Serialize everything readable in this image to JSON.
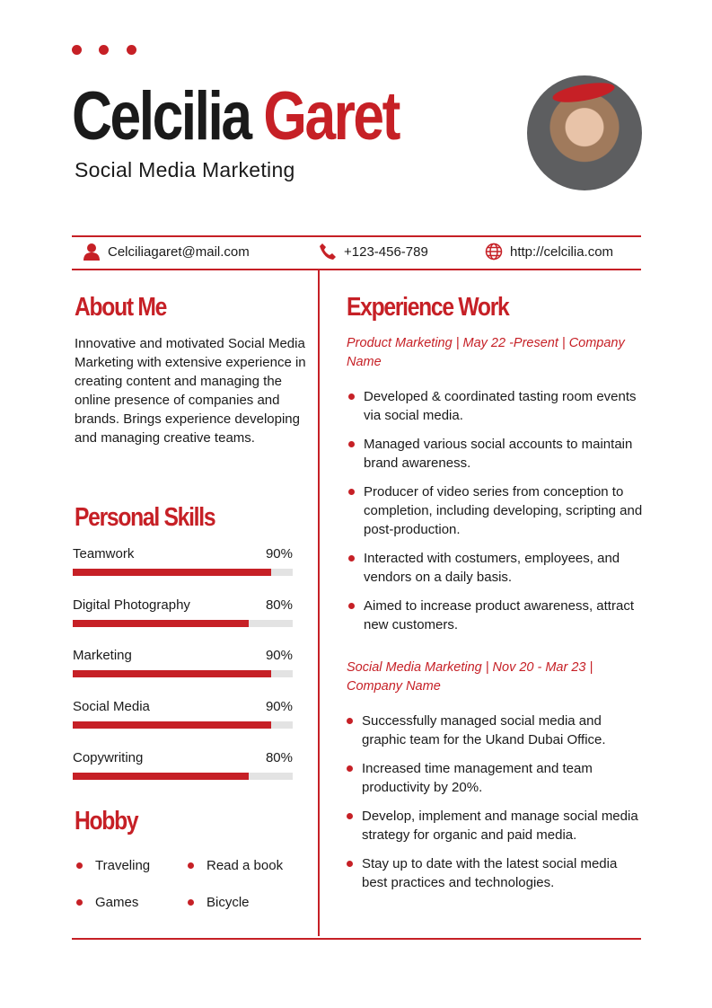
{
  "header": {
    "first_name": "Celcilia",
    "last_name": "Garet",
    "title": "Social Media Marketing"
  },
  "contact": {
    "email": "Celciliagaret@mail.com",
    "phone": "+123-456-789",
    "website": "http://celcilia.com"
  },
  "about": {
    "heading": "About Me",
    "text": "Innovative and motivated Social Media Marketing with extensive experience in creating content and managing the online presence of companies and brands. Brings experience developing and managing creative teams."
  },
  "skills": {
    "heading": "Personal Skills",
    "items": [
      {
        "name": "Teamwork",
        "percent_label": "90%",
        "level": 90
      },
      {
        "name": "Digital Photography",
        "percent_label": "80%",
        "level": 80
      },
      {
        "name": "Marketing",
        "percent_label": "90%",
        "level": 90
      },
      {
        "name": "Social Media",
        "percent_label": "90%",
        "level": 90
      },
      {
        "name": "Copywriting",
        "percent_label": "80%",
        "level": 80
      }
    ]
  },
  "hobby": {
    "heading": "Hobby",
    "items": [
      "Traveling",
      "Read a book",
      "Games",
      "Bicycle"
    ]
  },
  "experience": {
    "heading": "Experience Work",
    "jobs": [
      {
        "title": "Product Marketing | May 22 -Present | Company Name",
        "bullets": [
          "Developed & coordinated tasting room events via social media.",
          "Managed various social accounts to maintain brand awareness.",
          "Producer of video series from conception to completion, including developing, scripting and post-production.",
          "Interacted with costumers, employees, and vendors on a daily basis.",
          "Aimed to increase product awareness, attract new customers."
        ]
      },
      {
        "title": "Social Media Marketing | Nov 20 - Mar 23 | Company Name",
        "bullets": [
          "Successfully managed social media and graphic team for the Ukand Dubai Office.",
          "Increased time management and team productivity by 20%.",
          "Develop, implement and manage social media strategy for organic and paid media.",
          "Stay up to date with the latest social media best practices and technologies."
        ]
      }
    ]
  },
  "colors": {
    "accent": "#c62026"
  }
}
